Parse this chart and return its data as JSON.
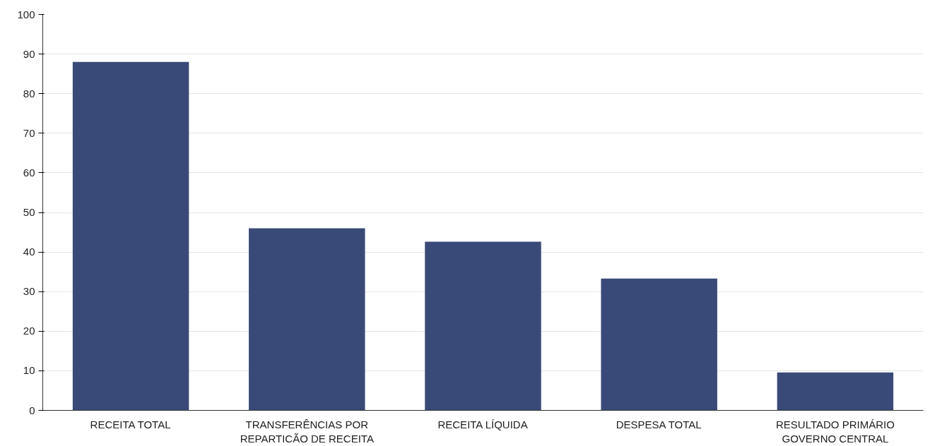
{
  "chart_data": {
    "type": "bar",
    "categories": [
      "RECEITA TOTAL",
      "TRANSFERÊNCIAS POR REPARTICÃO DE RECEITA",
      "RECEITA LÍQUIDA",
      "DESPESA TOTAL",
      "RESULTADO PRIMÁRIO GOVERNO CENTRAL"
    ],
    "values": [
      88,
      46,
      42.6,
      33.3,
      9.6
    ],
    "color": "#3a4a78",
    "ylim": [
      0,
      100
    ],
    "yticks": [
      0,
      10,
      20,
      30,
      40,
      50,
      60,
      70,
      80,
      90,
      100
    ],
    "grid": "y"
  }
}
